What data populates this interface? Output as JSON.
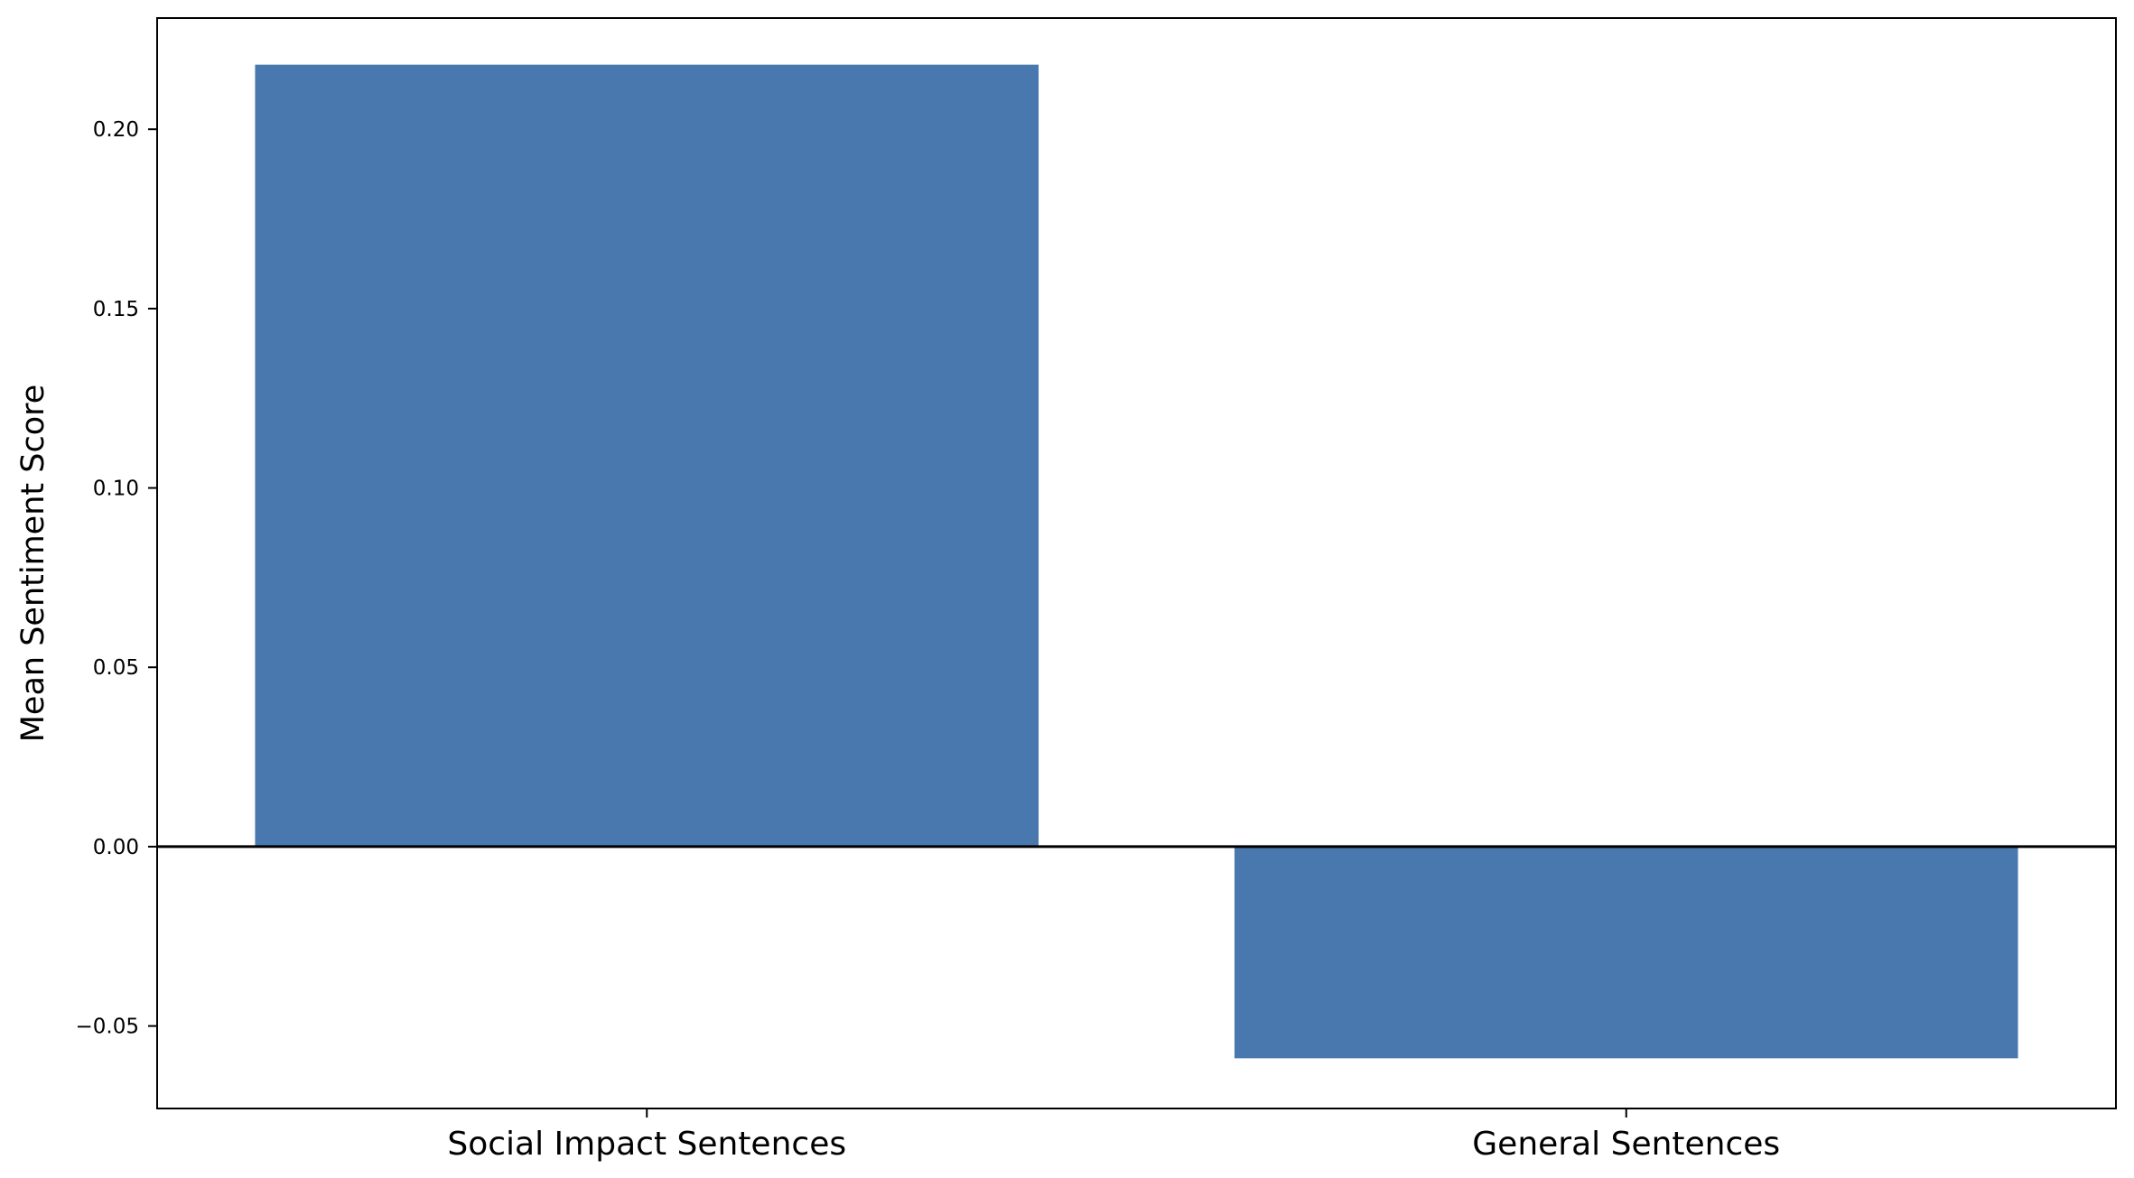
{
  "chart_data": {
    "type": "bar",
    "categories": [
      "Social Impact Sentences",
      "General Sentences"
    ],
    "values": [
      0.218,
      -0.059
    ],
    "title": "",
    "xlabel": "",
    "ylabel": "Mean Sentiment Score",
    "ylim": [
      -0.073,
      0.231
    ],
    "yticks": [
      -0.05,
      0.0,
      0.05,
      0.1,
      0.15,
      0.2
    ],
    "ytick_labels": [
      "−0.05",
      "0.00",
      "0.05",
      "0.10",
      "0.15",
      "0.20"
    ],
    "bar_color": "#4878ad",
    "zero_line": true,
    "grid": false,
    "legend": "none"
  }
}
